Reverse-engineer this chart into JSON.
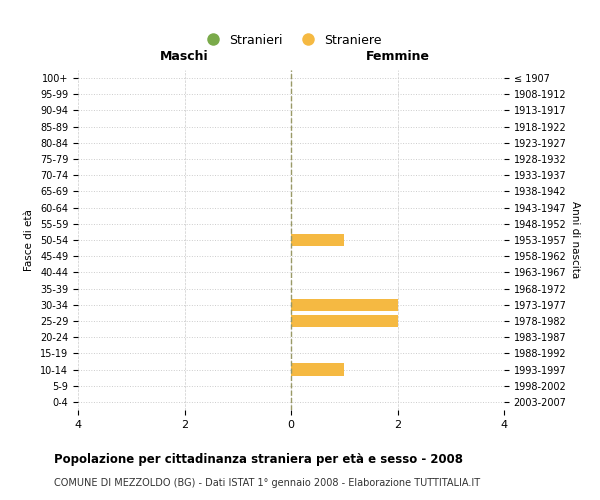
{
  "age_groups": [
    "100+",
    "95-99",
    "90-94",
    "85-89",
    "80-84",
    "75-79",
    "70-74",
    "65-69",
    "60-64",
    "55-59",
    "50-54",
    "45-49",
    "40-44",
    "35-39",
    "30-34",
    "25-29",
    "20-24",
    "15-19",
    "10-14",
    "5-9",
    "0-4"
  ],
  "birth_years": [
    "≤ 1907",
    "1908-1912",
    "1913-1917",
    "1918-1922",
    "1923-1927",
    "1928-1932",
    "1933-1937",
    "1938-1942",
    "1943-1947",
    "1948-1952",
    "1953-1957",
    "1958-1962",
    "1963-1967",
    "1968-1972",
    "1973-1977",
    "1978-1982",
    "1983-1987",
    "1988-1992",
    "1993-1997",
    "1998-2002",
    "2003-2007"
  ],
  "maschi": [
    0,
    0,
    0,
    0,
    0,
    0,
    0,
    0,
    0,
    0,
    0,
    0,
    0,
    0,
    0,
    0,
    0,
    0,
    0,
    0,
    0
  ],
  "femmine": [
    0,
    0,
    0,
    0,
    0,
    0,
    0,
    0,
    0,
    0,
    1,
    0,
    0,
    0,
    2,
    2,
    0,
    0,
    1,
    0,
    0
  ],
  "male_color": "#7aaa4a",
  "female_color": "#f5b942",
  "xlim": [
    -4,
    4
  ],
  "xticks": [
    -4,
    -2,
    0,
    2,
    4
  ],
  "title": "Popolazione per cittadinanza straniera per età e sesso - 2008",
  "subtitle": "COMUNE DI MEZZOLDO (BG) - Dati ISTAT 1° gennaio 2008 - Elaborazione TUTTITALIA.IT",
  "ylabel_left": "Fasce di età",
  "ylabel_right": "Anni di nascita",
  "xlabel_left": "Maschi",
  "xlabel_right": "Femmine",
  "legend_stranieri": "Stranieri",
  "legend_straniere": "Straniere",
  "background_color": "#ffffff",
  "grid_color": "#cccccc",
  "bar_height": 0.75
}
